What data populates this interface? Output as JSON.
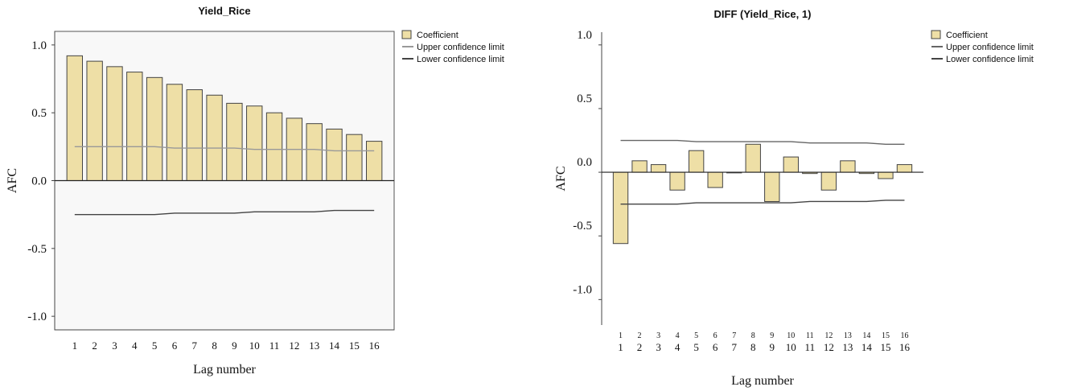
{
  "chart_data": [
    {
      "type": "bar",
      "title": "Yield_Rice",
      "xlabel": "Lag number",
      "ylabel": "AFC",
      "ylim": [
        -1.1,
        1.1
      ],
      "yticks": [
        "1.0",
        "0.5",
        "0.0",
        "-0.5",
        "-1.0"
      ],
      "ytick_values": [
        1.0,
        0.5,
        0.0,
        -0.5,
        -1.0
      ],
      "categories": [
        "1",
        "2",
        "3",
        "4",
        "5",
        "6",
        "7",
        "8",
        "9",
        "10",
        "11",
        "12",
        "13",
        "14",
        "15",
        "16"
      ],
      "series": [
        {
          "name": "Coefficient",
          "values": [
            0.92,
            0.88,
            0.84,
            0.8,
            0.76,
            0.71,
            0.67,
            0.63,
            0.57,
            0.55,
            0.5,
            0.46,
            0.42,
            0.38,
            0.34,
            0.29
          ]
        }
      ],
      "upper_confidence": [
        0.25,
        0.25,
        0.25,
        0.25,
        0.25,
        0.24,
        0.24,
        0.24,
        0.24,
        0.23,
        0.23,
        0.23,
        0.23,
        0.22,
        0.22,
        0.22
      ],
      "lower_confidence": [
        -0.25,
        -0.25,
        -0.25,
        -0.25,
        -0.25,
        -0.24,
        -0.24,
        -0.24,
        -0.24,
        -0.23,
        -0.23,
        -0.23,
        -0.23,
        -0.22,
        -0.22,
        -0.22
      ],
      "legend": [
        "Coefficient",
        "Upper confidence limit",
        "Lower confidence limit"
      ],
      "legend_position": "top-right outside",
      "grid": false,
      "colors": {
        "bar_fill": "#eedfa6",
        "bar_stroke": "#444444",
        "upper_line": "#999999",
        "lower_line": "#444444",
        "plot_bg": "#f8f8f8"
      }
    },
    {
      "type": "bar",
      "title": "DIFF (Yield_Rice, 1)",
      "xlabel": "Lag number",
      "ylabel": "AFC",
      "ylim": [
        -1.2,
        1.1
      ],
      "yticks": [
        "1.0",
        "0.5",
        "0.0",
        "-0.5",
        "-1.0"
      ],
      "ytick_values": [
        1.0,
        0.5,
        0.0,
        -0.5,
        -1.0
      ],
      "categories": [
        "1",
        "2",
        "3",
        "4",
        "5",
        "6",
        "7",
        "8",
        "9",
        "10",
        "11",
        "12",
        "13",
        "14",
        "15",
        "16"
      ],
      "series": [
        {
          "name": "Coefficient",
          "values": [
            -0.56,
            0.09,
            0.06,
            -0.14,
            0.17,
            -0.12,
            0.0,
            0.22,
            -0.23,
            0.12,
            -0.01,
            -0.14,
            0.09,
            -0.01,
            -0.05,
            0.06
          ]
        }
      ],
      "upper_confidence": [
        0.25,
        0.25,
        0.25,
        0.25,
        0.24,
        0.24,
        0.24,
        0.24,
        0.24,
        0.24,
        0.23,
        0.23,
        0.23,
        0.23,
        0.22,
        0.22
      ],
      "lower_confidence": [
        -0.25,
        -0.25,
        -0.25,
        -0.25,
        -0.24,
        -0.24,
        -0.24,
        -0.24,
        -0.24,
        -0.24,
        -0.23,
        -0.23,
        -0.23,
        -0.23,
        -0.22,
        -0.22
      ],
      "legend": [
        "Coefficient",
        "Upper confidence limit",
        "Lower confidence limit"
      ],
      "legend_position": "top-right outside",
      "grid": false,
      "colors": {
        "bar_fill": "#eedfa6",
        "bar_stroke": "#444444",
        "upper_line": "#666666",
        "lower_line": "#444444",
        "plot_bg": "#ffffff"
      }
    }
  ]
}
